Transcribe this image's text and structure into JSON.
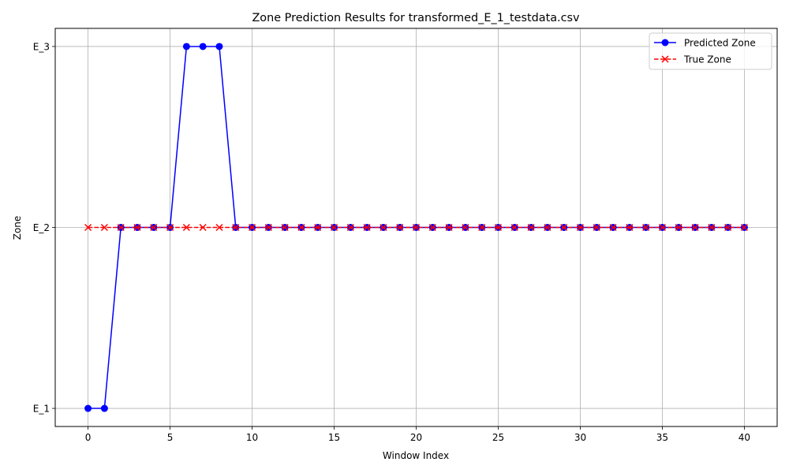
{
  "chart_data": {
    "type": "line",
    "title": "Zone Prediction Results for transformed_E_1_testdata.csv",
    "xlabel": "Window Index",
    "ylabel": "Zone",
    "x": [
      0,
      1,
      2,
      3,
      4,
      5,
      6,
      7,
      8,
      9,
      10,
      11,
      12,
      13,
      14,
      15,
      16,
      17,
      18,
      19,
      20,
      21,
      22,
      23,
      24,
      25,
      26,
      27,
      28,
      29,
      30,
      31,
      32,
      33,
      34,
      35,
      36,
      37,
      38,
      39,
      40
    ],
    "y_categories": [
      "E_1",
      "E_2",
      "E_3"
    ],
    "xlim": [
      -2,
      42
    ],
    "x_ticks": [
      0,
      5,
      10,
      15,
      20,
      25,
      30,
      35,
      40
    ],
    "grid": true,
    "legend_position": "top-right",
    "series": [
      {
        "name": "Predicted Zone",
        "color": "#0000ff",
        "marker": "circle",
        "linestyle": "solid",
        "values": [
          "E_1",
          "E_1",
          "E_2",
          "E_2",
          "E_2",
          "E_2",
          "E_3",
          "E_3",
          "E_3",
          "E_2",
          "E_2",
          "E_2",
          "E_2",
          "E_2",
          "E_2",
          "E_2",
          "E_2",
          "E_2",
          "E_2",
          "E_2",
          "E_2",
          "E_2",
          "E_2",
          "E_2",
          "E_2",
          "E_2",
          "E_2",
          "E_2",
          "E_2",
          "E_2",
          "E_2",
          "E_2",
          "E_2",
          "E_2",
          "E_2",
          "E_2",
          "E_2",
          "E_2",
          "E_2",
          "E_2",
          "E_2"
        ]
      },
      {
        "name": "True Zone",
        "color": "#ff0000",
        "marker": "x",
        "linestyle": "dashed",
        "values": [
          "E_2",
          "E_2",
          "E_2",
          "E_2",
          "E_2",
          "E_2",
          "E_2",
          "E_2",
          "E_2",
          "E_2",
          "E_2",
          "E_2",
          "E_2",
          "E_2",
          "E_2",
          "E_2",
          "E_2",
          "E_2",
          "E_2",
          "E_2",
          "E_2",
          "E_2",
          "E_2",
          "E_2",
          "E_2",
          "E_2",
          "E_2",
          "E_2",
          "E_2",
          "E_2",
          "E_2",
          "E_2",
          "E_2",
          "E_2",
          "E_2",
          "E_2",
          "E_2",
          "E_2",
          "E_2",
          "E_2",
          "E_2"
        ]
      }
    ]
  }
}
